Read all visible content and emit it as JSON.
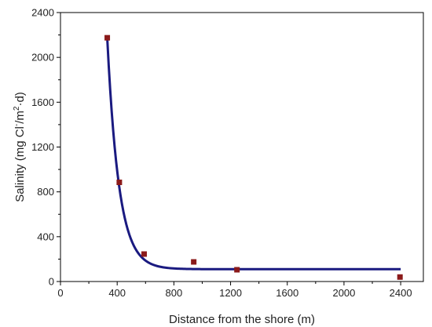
{
  "chart_data": {
    "type": "scatter",
    "title": "",
    "xlabel": "Distance from the shore (m)",
    "ylabel_parts": [
      "Salinity (mg Cl",
      "-",
      "/m",
      "2",
      "·d)"
    ],
    "xlim": [
      0,
      2560
    ],
    "ylim": [
      0,
      2400
    ],
    "xticks": [
      0,
      400,
      800,
      1200,
      1600,
      2000,
      2400
    ],
    "yticks": [
      0,
      400,
      800,
      1200,
      1600,
      2000,
      2400
    ],
    "grid": false,
    "series": [
      {
        "kind": "markers",
        "color": "#8b1a1a",
        "x": [
          330,
          415,
          590,
          940,
          1245,
          2395
        ],
        "y": [
          2175,
          885,
          245,
          175,
          105,
          40
        ]
      },
      {
        "kind": "fit-curve",
        "color": "#1a1a80",
        "model": "exponential-decay",
        "params": {
          "y0": 110,
          "A": 2060,
          "x0": 330,
          "t": 82
        },
        "x_range": [
          330,
          2400
        ]
      }
    ]
  }
}
